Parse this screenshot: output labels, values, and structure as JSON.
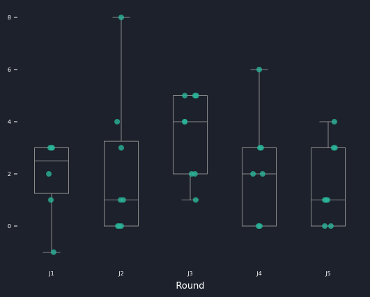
{
  "chart_data": {
    "type": "box",
    "xlabel": "Round",
    "ylabel": "",
    "ylim": [
      -1.5,
      8.5
    ],
    "yticks": [
      0,
      2,
      4,
      6,
      8
    ],
    "categories": [
      "J1",
      "J2",
      "J3",
      "J4",
      "J5"
    ],
    "boxes": [
      {
        "category": "J1",
        "whisker_low": -1,
        "q1": 1.25,
        "median": 2.5,
        "q3": 3,
        "whisker_high": 3
      },
      {
        "category": "J2",
        "whisker_low": 0,
        "q1": 0,
        "median": 1,
        "q3": 3.25,
        "whisker_high": 8
      },
      {
        "category": "J3",
        "whisker_low": 1,
        "q1": 2,
        "median": 4,
        "q3": 5,
        "whisker_high": 5
      },
      {
        "category": "J4",
        "whisker_low": 0,
        "q1": 0,
        "median": 2,
        "q3": 3,
        "whisker_high": 6
      },
      {
        "category": "J5",
        "whisker_low": 0,
        "q1": 0,
        "median": 1,
        "q3": 3,
        "whisker_high": 4
      }
    ],
    "points": [
      {
        "category": "J1",
        "values": [
          3,
          3,
          3,
          2,
          1,
          -1
        ]
      },
      {
        "category": "J2",
        "values": [
          8,
          4,
          3,
          1,
          1,
          0,
          0,
          0
        ]
      },
      {
        "category": "J3",
        "values": [
          5,
          5,
          5,
          4,
          4,
          2,
          2,
          1
        ]
      },
      {
        "category": "J4",
        "values": [
          6,
          3,
          3,
          2,
          2,
          0,
          0
        ]
      },
      {
        "category": "J5",
        "values": [
          4,
          3,
          3,
          1,
          1,
          1,
          0,
          0
        ]
      }
    ],
    "jitter": [
      [
        -0.04,
        0.02,
        0.0,
        -0.08,
        -0.02,
        0.06
      ],
      [
        0.0,
        -0.12,
        0.0,
        -0.02,
        0.06,
        -0.1,
        -0.06,
        0.0
      ],
      [
        -0.16,
        0.14,
        0.18,
        -0.16,
        -0.16,
        0.04,
        0.14,
        0.16
      ],
      [
        0.0,
        0.02,
        0.06,
        -0.18,
        0.1,
        -0.02,
        0.02
      ],
      [
        0.18,
        0.16,
        0.2,
        -0.1,
        -0.06,
        -0.02,
        -0.1,
        0.08
      ]
    ],
    "grid": false,
    "legend": "none",
    "colors": {
      "background": "#1c212b",
      "box_stroke": "#8c8c8c",
      "point_fill": "#2bb59a",
      "text": "#ffffff"
    }
  }
}
